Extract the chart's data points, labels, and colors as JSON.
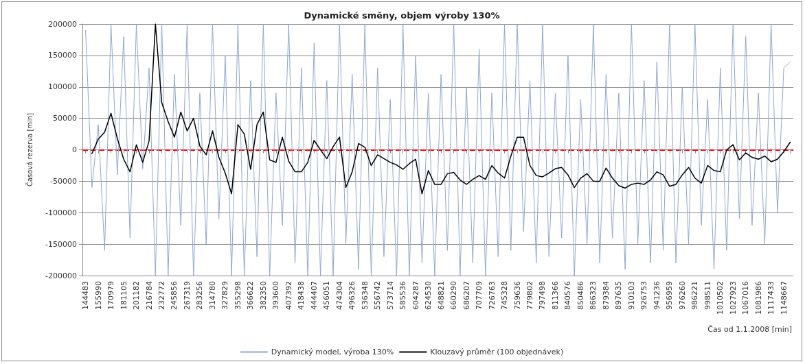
{
  "chart_data": {
    "type": "line",
    "title": "Dynamické směny, objem výroby 130%",
    "xlabel": "Čas od 1.1.2008 [min]",
    "ylabel": "Časová rezerva [min]",
    "categories": [
      "144483",
      null,
      "155990",
      null,
      "170979",
      null,
      "181105",
      null,
      "201182",
      null,
      "216784",
      null,
      "232772",
      null,
      "245856",
      null,
      "267319",
      null,
      "283256",
      null,
      "314780",
      null,
      "327829",
      null,
      "355298",
      null,
      "366622",
      null,
      "382350",
      null,
      "393600",
      null,
      "407392",
      null,
      "418438",
      null,
      "444407",
      null,
      "456051",
      null,
      "474304",
      null,
      "496326",
      null,
      "536348",
      null,
      "556742",
      null,
      "573714",
      null,
      "585536",
      null,
      "604287",
      null,
      "624530",
      null,
      "648821",
      null,
      "660290",
      null,
      "686207",
      null,
      "707709",
      null,
      "726763",
      null,
      "745328",
      null,
      "759636",
      null,
      "779802",
      null,
      "797498",
      null,
      "811366",
      null,
      "840576",
      null,
      "850486",
      null,
      "866323",
      null,
      "879384",
      null,
      "897635",
      null,
      "910103",
      null,
      "926753",
      null,
      "941236",
      null,
      "956959",
      null,
      "976260",
      null,
      "986221",
      null,
      "998511",
      null,
      "1010502",
      null,
      "1027923",
      null,
      "1067016",
      null,
      "1081986",
      null,
      "1117433",
      null,
      "1148667",
      null
    ],
    "series": [
      {
        "name": "Dynamický model, výroba 130%",
        "color": "#8fa7cf",
        "values": [
          190000,
          -60000,
          40000,
          -160000,
          200000,
          -40000,
          180000,
          -140000,
          200000,
          -30000,
          130000,
          -200000,
          200000,
          -200000,
          120000,
          -120000,
          200000,
          -200000,
          90000,
          -150000,
          200000,
          -110000,
          150000,
          -200000,
          200000,
          -200000,
          110000,
          -170000,
          200000,
          -200000,
          90000,
          -120000,
          200000,
          -180000,
          130000,
          -200000,
          170000,
          -200000,
          110000,
          -200000,
          200000,
          -150000,
          120000,
          -190000,
          200000,
          -200000,
          130000,
          -170000,
          80000,
          -200000,
          200000,
          -200000,
          150000,
          -180000,
          90000,
          -200000,
          120000,
          -160000,
          200000,
          -200000,
          100000,
          -180000,
          160000,
          -200000,
          90000,
          -170000,
          200000,
          -160000,
          200000,
          -130000,
          110000,
          -180000,
          200000,
          -170000,
          90000,
          -140000,
          150000,
          -200000,
          80000,
          -150000,
          200000,
          -180000,
          120000,
          -140000,
          90000,
          -190000,
          200000,
          -150000,
          110000,
          -180000,
          140000,
          -160000,
          200000,
          -180000,
          100000,
          -150000,
          200000,
          -120000,
          80000,
          -190000,
          130000,
          -160000,
          200000,
          -110000,
          180000,
          -120000,
          90000,
          -150000,
          200000,
          -100000,
          130000,
          140000
        ]
      },
      {
        "name": "Klouzavý průměr (100 objednávek)",
        "color": "#000000",
        "values": [
          null,
          -6000,
          17000,
          28000,
          58000,
          18000,
          -15000,
          -35000,
          8000,
          -20000,
          14000,
          200000,
          75000,
          45000,
          20000,
          60000,
          30000,
          50000,
          6000,
          -8000,
          30000,
          -12000,
          -37000,
          -70000,
          40000,
          25000,
          -31000,
          40000,
          60000,
          -16000,
          -20000,
          20000,
          -18000,
          -35000,
          -35000,
          -20000,
          15000,
          0,
          -14000,
          5000,
          20000,
          -60000,
          -35000,
          10000,
          4000,
          -25000,
          -8000,
          -14000,
          -20000,
          -24000,
          -31000,
          -22000,
          -15000,
          -70000,
          -33000,
          -55000,
          -55000,
          -38000,
          -36000,
          -48000,
          -55000,
          -47000,
          -41000,
          -47000,
          -25000,
          -37000,
          -45000,
          -10000,
          20000,
          20000,
          -25000,
          -41000,
          -43000,
          -37000,
          -30000,
          -28000,
          -40000,
          -60000,
          -45000,
          -38000,
          -50000,
          -50000,
          -29000,
          -45000,
          -57000,
          -61000,
          -55000,
          -53000,
          -55000,
          -48000,
          -35000,
          -40000,
          -58000,
          -55000,
          -40000,
          -28000,
          -45000,
          -53000,
          -25000,
          -33000,
          -35000,
          0,
          8000,
          -16000,
          -5000,
          -12000,
          -15000,
          -10000,
          -19000,
          -15000,
          -3000,
          12000
        ]
      }
    ],
    "ylim": [
      -200000,
      200000
    ],
    "yticks": [
      -200000,
      -150000,
      -100000,
      -50000,
      0,
      50000,
      100000,
      150000,
      200000
    ],
    "ref_lines": [
      {
        "axis": "y",
        "value": 0,
        "color": "#ff0000",
        "line_style": "dashed"
      }
    ],
    "grid": "y",
    "legend": "bottom",
    "marker": "none",
    "line_style": "solid"
  }
}
